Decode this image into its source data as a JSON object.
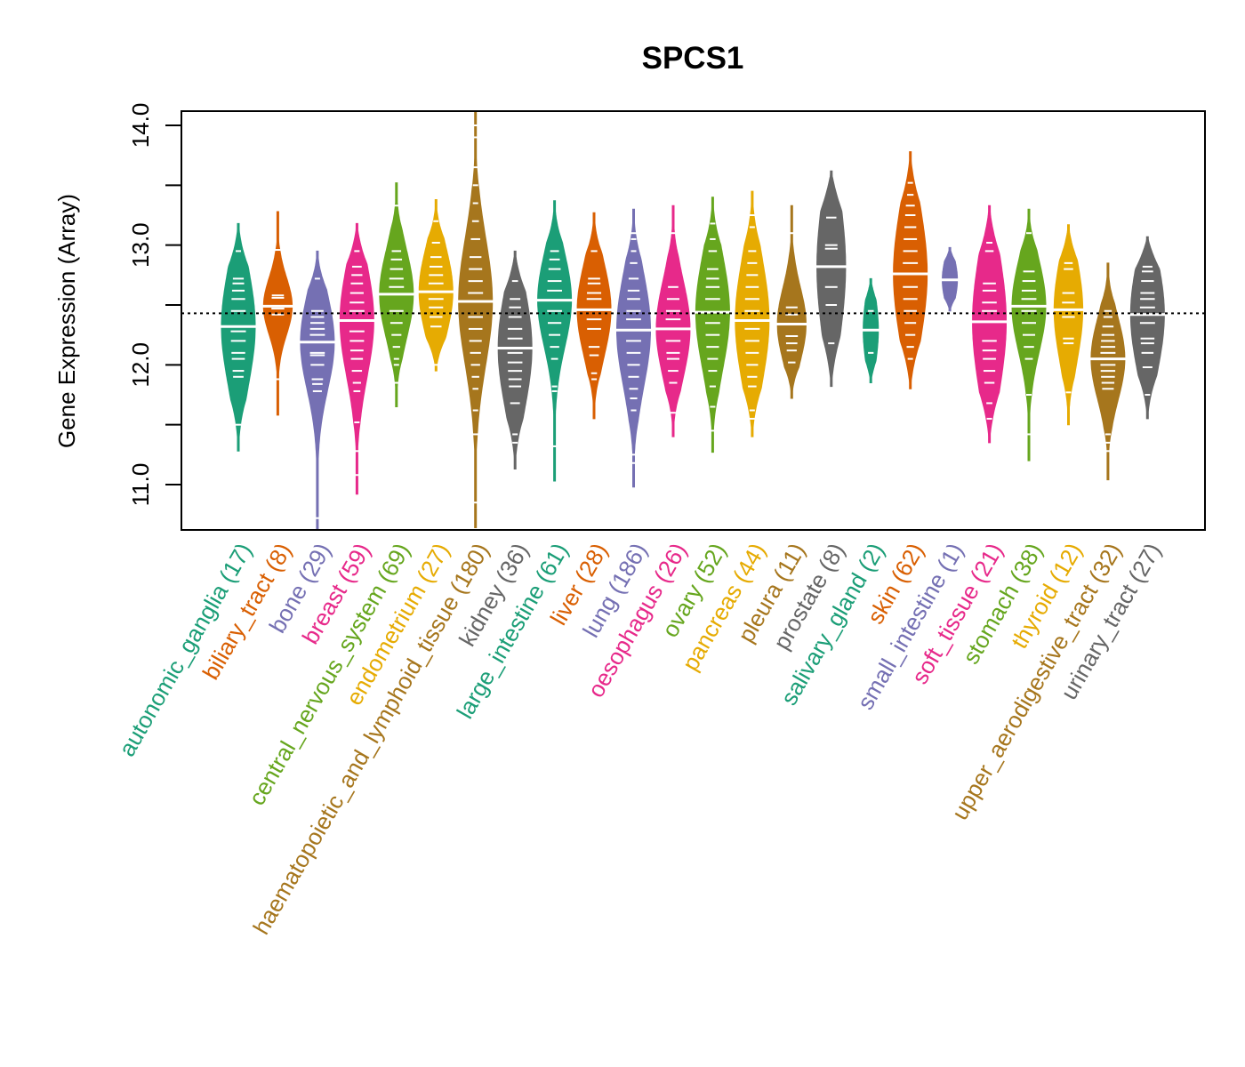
{
  "chart_data": {
    "type": "violin",
    "title": "SPCS1",
    "xlabel": "",
    "ylabel": "Gene Expression (Array)",
    "ylim": [
      10.62,
      14.12
    ],
    "yticks": [
      11.0,
      11.5,
      12.0,
      12.5,
      13.0,
      13.5,
      14.0
    ],
    "ytick_labels": [
      "11.0",
      "",
      "12.0",
      "",
      "13.0",
      "",
      "14.0"
    ],
    "reference_line": 12.43,
    "reference_line_style": "dotted",
    "grid": false,
    "legend": "none",
    "palette": [
      "#1B9E77",
      "#D95F02",
      "#7570B3",
      "#E7298A",
      "#66A61E",
      "#E6AB02",
      "#A6761D",
      "#666666"
    ],
    "groups": [
      {
        "name": "autonomic_ganglia",
        "n": 17,
        "label": "autonomic_ganglia (17)",
        "color": "#1B9E77",
        "min": 11.28,
        "q1": 12.05,
        "median": 12.32,
        "q3": 12.62,
        "max": 13.18,
        "samples": [
          11.5,
          11.9,
          11.95,
          12.05,
          12.1,
          12.2,
          12.28,
          12.32,
          12.45,
          12.55,
          12.62,
          12.68,
          12.72,
          12.95
        ]
      },
      {
        "name": "biliary_tract",
        "n": 8,
        "label": "biliary_tract (8)",
        "color": "#D95F02",
        "min": 11.58,
        "q1": 12.3,
        "median": 12.49,
        "q3": 12.58,
        "max": 13.28,
        "samples": [
          11.88,
          12.42,
          12.47,
          12.49,
          12.56,
          12.58,
          12.96
        ]
      },
      {
        "name": "bone",
        "n": 29,
        "label": "bone (29)",
        "color": "#7570B3",
        "min": 10.6,
        "q1": 11.95,
        "median": 12.19,
        "q3": 12.42,
        "max": 12.95,
        "samples": [
          10.72,
          11.78,
          11.84,
          11.88,
          12.0,
          12.08,
          12.1,
          12.19,
          12.25,
          12.3,
          12.35,
          12.4,
          12.45,
          12.72
        ]
      },
      {
        "name": "breast",
        "n": 59,
        "label": "breast (59)",
        "color": "#E7298A",
        "min": 10.92,
        "q1": 12.1,
        "median": 12.37,
        "q3": 12.65,
        "max": 13.18,
        "samples": [
          11.08,
          11.28,
          11.52,
          11.78,
          11.85,
          11.95,
          12.05,
          12.12,
          12.2,
          12.28,
          12.37,
          12.45,
          12.52,
          12.6,
          12.68,
          12.75,
          12.82,
          12.95
        ]
      },
      {
        "name": "central_nervous_system",
        "n": 69,
        "label": "central_nervous_system (69)",
        "color": "#66A61E",
        "min": 11.65,
        "q1": 12.35,
        "median": 12.59,
        "q3": 12.78,
        "max": 13.52,
        "samples": [
          11.85,
          12.0,
          12.05,
          12.15,
          12.25,
          12.35,
          12.45,
          12.59,
          12.65,
          12.72,
          12.8,
          12.88,
          12.95,
          13.33
        ]
      },
      {
        "name": "endometrium",
        "n": 27,
        "label": "endometrium (27)",
        "color": "#E6AB02",
        "min": 11.95,
        "q1": 12.42,
        "median": 12.61,
        "q3": 12.85,
        "max": 13.38,
        "samples": [
          12.0,
          12.32,
          12.4,
          12.48,
          12.55,
          12.68,
          12.75,
          12.82,
          12.9,
          13.02,
          13.2
        ]
      },
      {
        "name": "haematopoietic_and_lymphoid_tissue",
        "n": 180,
        "label": "haematopoietic_and_lymphoid_tissue (180)",
        "color": "#A6761D",
        "min": 10.64,
        "q1": 12.2,
        "median": 12.53,
        "q3": 12.82,
        "max": 14.12,
        "samples": [
          10.85,
          11.42,
          11.62,
          11.8,
          11.9,
          12.0,
          12.1,
          12.2,
          12.3,
          12.4,
          12.53,
          12.6,
          12.7,
          12.8,
          12.9,
          13.05,
          13.2,
          13.35,
          13.5,
          13.65,
          13.9,
          14.0
        ]
      },
      {
        "name": "kidney",
        "n": 36,
        "label": "kidney (36)",
        "color": "#666666",
        "min": 11.13,
        "q1": 11.85,
        "median": 12.14,
        "q3": 12.42,
        "max": 12.95,
        "samples": [
          11.35,
          11.42,
          11.68,
          11.82,
          11.88,
          11.95,
          12.02,
          12.1,
          12.22,
          12.3,
          12.4,
          12.48,
          12.55,
          12.7
        ]
      },
      {
        "name": "large_intestine",
        "n": 61,
        "label": "large_intestine (61)",
        "color": "#1B9E77",
        "min": 11.03,
        "q1": 12.32,
        "median": 12.54,
        "q3": 12.78,
        "max": 13.37,
        "samples": [
          11.32,
          11.78,
          11.82,
          12.05,
          12.15,
          12.25,
          12.35,
          12.45,
          12.54,
          12.62,
          12.7,
          12.8,
          12.88,
          12.95
        ]
      },
      {
        "name": "liver",
        "n": 28,
        "label": "liver (28)",
        "color": "#D95F02",
        "min": 11.55,
        "q1": 12.2,
        "median": 12.46,
        "q3": 12.65,
        "max": 13.27,
        "samples": [
          11.88,
          11.93,
          12.08,
          12.15,
          12.3,
          12.38,
          12.46,
          12.55,
          12.6,
          12.68,
          12.72,
          12.95
        ]
      },
      {
        "name": "lung",
        "n": 186,
        "label": "lung (186)",
        "color": "#7570B3",
        "min": 10.98,
        "q1": 12.0,
        "median": 12.29,
        "q3": 12.55,
        "max": 13.3,
        "samples": [
          11.18,
          11.25,
          11.62,
          11.72,
          11.8,
          11.9,
          12.0,
          12.1,
          12.2,
          12.29,
          12.38,
          12.45,
          12.55,
          12.62,
          12.72,
          12.85,
          12.95,
          13.05,
          13.1
        ]
      },
      {
        "name": "oesophagus",
        "n": 26,
        "label": "oesophagus (26)",
        "color": "#E7298A",
        "min": 11.4,
        "q1": 12.05,
        "median": 12.3,
        "q3": 12.52,
        "max": 13.33,
        "samples": [
          11.6,
          11.85,
          11.95,
          12.05,
          12.1,
          12.2,
          12.3,
          12.38,
          12.45,
          12.55,
          12.65,
          13.1
        ]
      },
      {
        "name": "ovary",
        "n": 52,
        "label": "ovary (52)",
        "color": "#66A61E",
        "min": 11.27,
        "q1": 12.15,
        "median": 12.44,
        "q3": 12.7,
        "max": 13.4,
        "samples": [
          11.45,
          11.65,
          11.82,
          11.95,
          12.05,
          12.15,
          12.25,
          12.35,
          12.44,
          12.55,
          12.65,
          12.72,
          12.8,
          12.95,
          13.05,
          13.18
        ]
      },
      {
        "name": "pancreas",
        "n": 44,
        "label": "pancreas (44)",
        "color": "#E6AB02",
        "min": 11.4,
        "q1": 12.05,
        "median": 12.37,
        "q3": 12.65,
        "max": 13.45,
        "samples": [
          11.55,
          11.62,
          11.82,
          11.9,
          12.0,
          12.1,
          12.2,
          12.3,
          12.37,
          12.45,
          12.55,
          12.65,
          12.75,
          12.85,
          12.95,
          13.15,
          13.25
        ]
      },
      {
        "name": "pleura",
        "n": 11,
        "label": "pleura (11)",
        "color": "#A6761D",
        "min": 11.72,
        "q1": 12.12,
        "median": 12.34,
        "q3": 12.48,
        "max": 13.33,
        "samples": [
          12.02,
          12.12,
          12.18,
          12.24,
          12.42,
          12.48,
          13.1
        ]
      },
      {
        "name": "prostate",
        "n": 8,
        "label": "prostate (8)",
        "color": "#666666",
        "min": 11.82,
        "q1": 12.3,
        "median": 12.82,
        "q3": 13.0,
        "max": 13.62,
        "samples": [
          12.18,
          12.5,
          12.65,
          12.82,
          12.97,
          13.0,
          13.23
        ]
      },
      {
        "name": "salivary_gland",
        "n": 2,
        "label": "salivary_gland (2)",
        "color": "#1B9E77",
        "min": 11.85,
        "q1": 12.1,
        "median": 12.29,
        "q3": 12.45,
        "max": 12.72,
        "samples": [
          12.1,
          12.45
        ]
      },
      {
        "name": "skin",
        "n": 62,
        "label": "skin (62)",
        "color": "#D95F02",
        "min": 11.8,
        "q1": 12.45,
        "median": 12.76,
        "q3": 13.1,
        "max": 13.78,
        "samples": [
          12.05,
          12.15,
          12.25,
          12.35,
          12.45,
          12.55,
          12.65,
          12.76,
          12.85,
          12.95,
          13.05,
          13.15,
          13.25,
          13.33,
          13.42,
          13.52
        ]
      },
      {
        "name": "small_intestine",
        "n": 1,
        "label": "small_intestine (1)",
        "color": "#7570B3",
        "min": 12.45,
        "q1": 12.6,
        "median": 12.71,
        "q3": 12.82,
        "max": 12.98,
        "samples": [
          12.71
        ]
      },
      {
        "name": "soft_tissue",
        "n": 21,
        "label": "soft_tissue (21)",
        "color": "#E7298A",
        "min": 11.35,
        "q1": 11.95,
        "median": 12.36,
        "q3": 12.62,
        "max": 13.33,
        "samples": [
          11.55,
          11.68,
          11.85,
          11.95,
          12.05,
          12.12,
          12.2,
          12.36,
          12.45,
          12.52,
          12.62,
          12.68,
          12.95,
          13.02
        ]
      },
      {
        "name": "stomach",
        "n": 38,
        "label": "stomach (38)",
        "color": "#66A61E",
        "min": 11.2,
        "q1": 12.25,
        "median": 12.49,
        "q3": 12.7,
        "max": 13.3,
        "samples": [
          11.42,
          11.75,
          12.05,
          12.15,
          12.25,
          12.35,
          12.45,
          12.55,
          12.62,
          12.7,
          12.78,
          13.1
        ]
      },
      {
        "name": "thyroid",
        "n": 12,
        "label": "thyroid (12)",
        "color": "#E6AB02",
        "min": 11.5,
        "q1": 12.2,
        "median": 12.46,
        "q3": 12.7,
        "max": 13.17,
        "samples": [
          11.77,
          12.18,
          12.22,
          12.4,
          12.52,
          12.6,
          12.8,
          12.85
        ]
      },
      {
        "name": "upper_aerodigestive_tract",
        "n": 32,
        "label": "upper_aerodigestive_tract (32)",
        "color": "#A6761D",
        "min": 11.04,
        "q1": 11.85,
        "median": 12.05,
        "q3": 12.25,
        "max": 12.85,
        "samples": [
          11.28,
          11.35,
          11.42,
          11.8,
          11.85,
          11.9,
          11.95,
          12.0,
          12.1,
          12.15,
          12.2,
          12.25,
          12.32,
          12.4,
          12.45
        ]
      },
      {
        "name": "urinary_tract",
        "n": 27,
        "label": "urinary_tract (27)",
        "color": "#666666",
        "min": 11.55,
        "q1": 12.1,
        "median": 12.42,
        "q3": 12.65,
        "max": 13.07,
        "samples": [
          11.75,
          11.98,
          12.1,
          12.18,
          12.22,
          12.35,
          12.42,
          12.48,
          12.55,
          12.6,
          12.7,
          12.78,
          12.82
        ]
      }
    ]
  }
}
